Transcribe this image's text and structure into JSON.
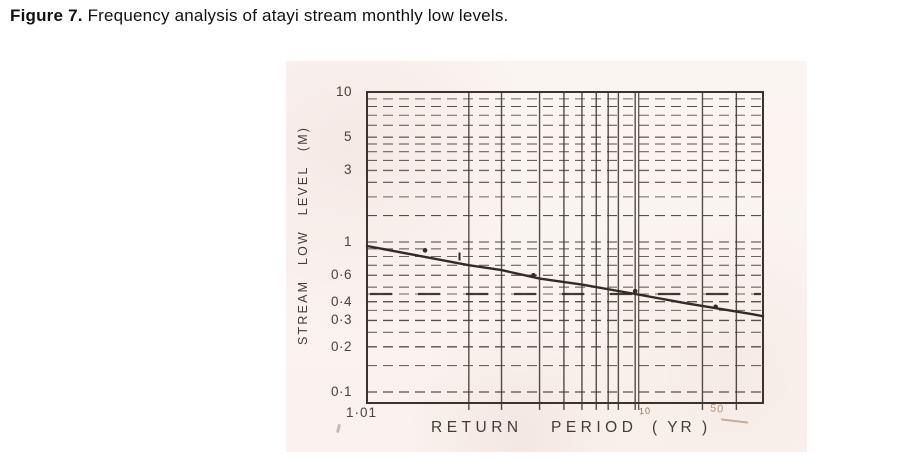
{
  "caption": {
    "label": "Figure 7.",
    "text": " Frequency analysis of atayi stream monthly low levels."
  },
  "chart_data": {
    "type": "line",
    "title": "Frequency analysis of atayi stream monthly low levels",
    "xlabel": "RETURN PERIOD (YR)",
    "xlabel_parts": [
      "RETURN",
      "PERIOD",
      "( YR )"
    ],
    "ylabel": "STREAM LOW LEVEL (M)",
    "x_scale": "gumbel_probability",
    "y_scale": "log",
    "x_range_T": [
      1.01,
      58
    ],
    "ylim": [
      0.085,
      10
    ],
    "grid": "on",
    "legend": "none",
    "y_ticks": [
      {
        "v": 10,
        "label": "10"
      },
      {
        "v": 5,
        "label": "5"
      },
      {
        "v": 3,
        "label": "3"
      },
      {
        "v": 1,
        "label": "1"
      },
      {
        "v": 0.6,
        "label": "0·6"
      },
      {
        "v": 0.4,
        "label": "0·4"
      },
      {
        "v": 0.3,
        "label": "0·3"
      },
      {
        "v": 0.2,
        "label": "0·2"
      },
      {
        "v": 0.1,
        "label": "0·1"
      }
    ],
    "x_ticks": [
      {
        "T": 1.01,
        "label": "1·01",
        "faint": false
      },
      {
        "T": 10,
        "label": "10",
        "faint": true
      },
      {
        "T": 50,
        "label": "50",
        "faint": true
      }
    ],
    "y_gridlines": [
      0.1,
      0.15,
      0.2,
      0.25,
      0.3,
      0.35,
      0.4,
      0.45,
      0.5,
      0.6,
      0.7,
      0.8,
      0.9,
      1,
      1.5,
      2,
      2.5,
      3,
      3.5,
      4,
      4.5,
      5,
      6,
      7,
      8,
      9,
      10
    ],
    "x_gridlines_T": [
      1.5,
      2,
      3,
      4,
      5,
      6,
      7,
      8,
      10,
      25,
      40
    ],
    "x_gridline_double_T": 10,
    "series": [
      {
        "name": "fitted frequency line",
        "type": "line",
        "points_T_level_m": [
          [
            1.01,
            0.94
          ],
          [
            1.5,
            0.7
          ],
          [
            2,
            0.65
          ],
          [
            3,
            0.57
          ],
          [
            5,
            0.52
          ],
          [
            10,
            0.45
          ],
          [
            20,
            0.39
          ],
          [
            50,
            0.33
          ],
          [
            58,
            0.32
          ]
        ]
      },
      {
        "name": "observed points",
        "type": "scatter",
        "points": [
          {
            "T": 1.15,
            "level_m": 0.88,
            "marker": "dot"
          },
          {
            "T": 1.4,
            "level_m": 0.8,
            "marker": "tick"
          },
          {
            "T": 2.8,
            "level_m": 0.6,
            "marker": "dot"
          },
          {
            "T": 10,
            "level_m": 0.47,
            "marker": "dot"
          },
          {
            "T": 30,
            "level_m": 0.37,
            "marker": "dot"
          }
        ]
      }
    ],
    "threshold_line": {
      "style": "bold-dashed",
      "level_m": 0.45
    }
  },
  "colors": {
    "page_bg": "#ffffff",
    "scan_bg": "#faf3ef",
    "ink": "#473e34",
    "frame": "#3c332b",
    "data_line": "#332b24",
    "tick_text": "#4a4138",
    "faint_tick_10": "#8f7660",
    "faint_tick_50": "#b5977f",
    "caption_text": "#121212"
  }
}
